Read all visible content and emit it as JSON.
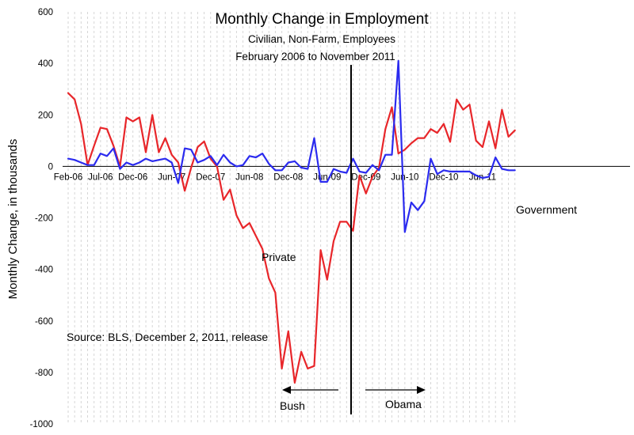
{
  "chart_data": {
    "type": "line",
    "title": "Monthly Change in Employment",
    "subtitle_1": "Civilian, Non-Farm, Employees",
    "subtitle_2": "February 2006 to November 2011",
    "ylabel": "Monthly Change, in thousands",
    "xlabel": "",
    "ylim": [
      -1000,
      600
    ],
    "yticks": [
      600,
      400,
      200,
      0,
      -200,
      -400,
      -600,
      -800,
      -1000
    ],
    "xtick_labels": [
      {
        "index": 0,
        "label": "Feb-06"
      },
      {
        "index": 5,
        "label": "Jul-06"
      },
      {
        "index": 10,
        "label": "Dec-06"
      },
      {
        "index": 16,
        "label": "Jun-07"
      },
      {
        "index": 22,
        "label": "Dec-07"
      },
      {
        "index": 28,
        "label": "Jun-08"
      },
      {
        "index": 34,
        "label": "Dec-08"
      },
      {
        "index": 40,
        "label": "Jun-09"
      },
      {
        "index": 46,
        "label": "Dec-09"
      },
      {
        "index": 52,
        "label": "Jun-10"
      },
      {
        "index": 58,
        "label": "Dec-10"
      },
      {
        "index": 64,
        "label": "Jun-11"
      }
    ],
    "n_points": 70,
    "grid": "vertical-dashed",
    "series": [
      {
        "name": "Private",
        "color": "#e8262a",
        "values": [
          285,
          260,
          165,
          5,
          80,
          150,
          145,
          80,
          0,
          190,
          175,
          190,
          55,
          200,
          55,
          110,
          45,
          15,
          -95,
          -5,
          75,
          97,
          30,
          -1,
          -130,
          -90,
          -190,
          -240,
          -220,
          -270,
          -320,
          -435,
          -490,
          -785,
          -640,
          -840,
          -720,
          -785,
          -775,
          -325,
          -440,
          -290,
          -215,
          -215,
          -250,
          -35,
          -105,
          -40,
          -5,
          145,
          230,
          50,
          65,
          90,
          110,
          110,
          145,
          130,
          165,
          95,
          260,
          220,
          240,
          100,
          75,
          175,
          70,
          220,
          115,
          140
        ]
      },
      {
        "name": "Government",
        "color": "#2b2bef",
        "values": [
          30,
          25,
          15,
          5,
          5,
          50,
          40,
          70,
          -10,
          15,
          5,
          15,
          30,
          20,
          25,
          30,
          15,
          -65,
          70,
          65,
          15,
          25,
          40,
          5,
          45,
          15,
          0,
          5,
          40,
          35,
          50,
          10,
          -15,
          -15,
          15,
          20,
          -5,
          -10,
          110,
          -60,
          -60,
          -10,
          -20,
          -25,
          30,
          -20,
          -25,
          5,
          -15,
          45,
          45,
          410,
          -255,
          -140,
          -170,
          -135,
          30,
          -30,
          -15,
          -20,
          -20,
          -20,
          -20,
          -35,
          -45,
          -40,
          35,
          -10,
          -15,
          -15
        ]
      }
    ],
    "annotations": {
      "private_label": "Private",
      "government_label": "Government",
      "source": "Source:  BLS, December 2, 2011, release",
      "bush_label": "Bush",
      "obama_label": "Obama"
    }
  }
}
